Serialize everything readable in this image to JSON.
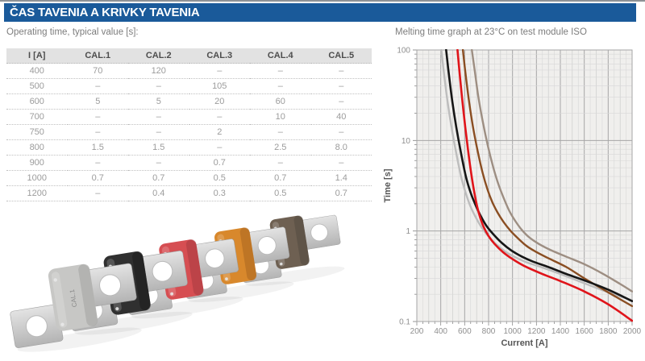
{
  "page": {
    "title": "ČAS TAVENIA A KRIVKY TAVENIA",
    "left_caption": "Operating time, typical value [s]:",
    "colors": {
      "header_bg": "#1a5a9a",
      "header_text": "#ffffff"
    }
  },
  "table": {
    "headers": [
      "I [A]",
      "CAL.1",
      "CAL.2",
      "CAL.3",
      "CAL.4",
      "CAL.5"
    ],
    "rows": [
      [
        "400",
        "70",
        "120",
        "–",
        "–",
        "–"
      ],
      [
        "500",
        "–",
        "–",
        "105",
        "–",
        "–"
      ],
      [
        "600",
        "5",
        "5",
        "20",
        "60",
        "–"
      ],
      [
        "700",
        "–",
        "–",
        "–",
        "10",
        "40"
      ],
      [
        "750",
        "–",
        "–",
        "2",
        "–",
        "–"
      ],
      [
        "800",
        "1.5",
        "1.5",
        "–",
        "2.5",
        "8.0"
      ],
      [
        "900",
        "–",
        "–",
        "0.7",
        "–",
        "–"
      ],
      [
        "1000",
        "0.7",
        "0.7",
        "0.5",
        "0.7",
        "1.4"
      ],
      [
        "1200",
        "–",
        "0.4",
        "0.3",
        "0.5",
        "0.7"
      ]
    ]
  },
  "product_image": {
    "description": "five-megafuse-row",
    "tab_color_light": "#e3e3e3",
    "tab_color_dark": "#b4b4b4",
    "fuses": [
      {
        "name": "CAL.5",
        "body_color": "#6e6052",
        "shade": "#544a3f",
        "label": ""
      },
      {
        "name": "CAL.4",
        "body_color": "#d8882c",
        "shade": "#a96620",
        "label": ""
      },
      {
        "name": "CAL.3",
        "body_color": "#d64e52",
        "shade": "#a83a3f",
        "label": ""
      },
      {
        "name": "CAL.2",
        "body_color": "#303030",
        "shade": "#1b1b1b",
        "label": ""
      },
      {
        "name": "CAL.1",
        "body_color": "#c7c7c5",
        "shade": "#a3a3a1",
        "label": "CAL.1"
      }
    ]
  },
  "chart_data": {
    "type": "line",
    "title": "Melting time graph at 23°C on test module ISO",
    "xlabel": "Current [A]",
    "ylabel": "Time [s]",
    "xlim": [
      200,
      2000
    ],
    "x_ticks": [
      200,
      400,
      600,
      800,
      1000,
      1200,
      1400,
      1600,
      1800,
      2000
    ],
    "x_minor_step": 50,
    "ylim": [
      0.1,
      100
    ],
    "y_scale": "log",
    "y_ticks": [
      "0.1",
      "1",
      "10",
      "100"
    ],
    "grid": true,
    "legend_position": "none",
    "plot_bg": "#f0efed",
    "grid_minor_color": "#d8d8d8",
    "grid_mid_color": "#c6c6c6",
    "grid_major_color": "#a6a6a6",
    "series": [
      {
        "name": "CAL.1",
        "color": "#bdbdbd",
        "width": 2.4,
        "points": [
          [
            405,
            100
          ],
          [
            425,
            58
          ],
          [
            455,
            28
          ],
          [
            490,
            14
          ],
          [
            530,
            7.2
          ],
          [
            570,
            4.0
          ],
          [
            610,
            2.6
          ],
          [
            650,
            1.85
          ],
          [
            695,
            1.4
          ],
          [
            745,
            1.08
          ],
          [
            800,
            0.87
          ],
          [
            870,
            0.7
          ],
          [
            950,
            0.58
          ],
          [
            1040,
            0.5
          ],
          [
            1120,
            0.45
          ],
          [
            1250,
            0.395
          ],
          [
            1400,
            0.335
          ],
          [
            1600,
            0.265
          ],
          [
            1800,
            0.21
          ],
          [
            2000,
            0.172
          ]
        ]
      },
      {
        "name": "CAL.5",
        "color": "#9d8e82",
        "width": 2.4,
        "points": [
          [
            660,
            100
          ],
          [
            685,
            58
          ],
          [
            715,
            30
          ],
          [
            752,
            16
          ],
          [
            795,
            8.6
          ],
          [
            840,
            5.0
          ],
          [
            885,
            3.2
          ],
          [
            930,
            2.25
          ],
          [
            975,
            1.65
          ],
          [
            1025,
            1.28
          ],
          [
            1080,
            1.02
          ],
          [
            1140,
            0.85
          ],
          [
            1220,
            0.72
          ],
          [
            1320,
            0.615
          ],
          [
            1450,
            0.52
          ],
          [
            1600,
            0.43
          ],
          [
            1750,
            0.34
          ],
          [
            1900,
            0.26
          ],
          [
            2000,
            0.215
          ]
        ]
      },
      {
        "name": "CAL.4",
        "color": "#8a4e22",
        "width": 2.4,
        "points": [
          [
            585,
            100
          ],
          [
            605,
            58
          ],
          [
            635,
            28
          ],
          [
            670,
            14
          ],
          [
            710,
            7.5
          ],
          [
            750,
            4.4
          ],
          [
            790,
            2.9
          ],
          [
            830,
            2.1
          ],
          [
            875,
            1.6
          ],
          [
            925,
            1.26
          ],
          [
            985,
            1.0
          ],
          [
            1050,
            0.82
          ],
          [
            1120,
            0.68
          ],
          [
            1200,
            0.585
          ],
          [
            1300,
            0.5
          ],
          [
            1450,
            0.4
          ],
          [
            1600,
            0.3
          ],
          [
            1800,
            0.21
          ],
          [
            2000,
            0.148
          ]
        ]
      },
      {
        "name": "CAL.2",
        "color": "#161616",
        "width": 2.6,
        "points": [
          [
            445,
            100
          ],
          [
            465,
            58
          ],
          [
            495,
            28
          ],
          [
            530,
            14
          ],
          [
            570,
            7.2
          ],
          [
            610,
            4.0
          ],
          [
            650,
            2.65
          ],
          [
            690,
            1.95
          ],
          [
            730,
            1.5
          ],
          [
            780,
            1.15
          ],
          [
            840,
            0.92
          ],
          [
            910,
            0.74
          ],
          [
            990,
            0.61
          ],
          [
            1080,
            0.52
          ],
          [
            1170,
            0.46
          ],
          [
            1300,
            0.4
          ],
          [
            1450,
            0.335
          ],
          [
            1600,
            0.285
          ],
          [
            1800,
            0.225
          ],
          [
            2000,
            0.168
          ]
        ]
      },
      {
        "name": "CAL.3",
        "color": "#e0141a",
        "width": 2.6,
        "points": [
          [
            540,
            100
          ],
          [
            558,
            55
          ],
          [
            580,
            28
          ],
          [
            605,
            14
          ],
          [
            630,
            7.5
          ],
          [
            655,
            4.3
          ],
          [
            680,
            2.7
          ],
          [
            705,
            1.85
          ],
          [
            730,
            1.4
          ],
          [
            760,
            1.1
          ],
          [
            800,
            0.88
          ],
          [
            850,
            0.72
          ],
          [
            920,
            0.585
          ],
          [
            1000,
            0.49
          ],
          [
            1100,
            0.41
          ],
          [
            1250,
            0.335
          ],
          [
            1400,
            0.28
          ],
          [
            1600,
            0.215
          ],
          [
            1800,
            0.155
          ],
          [
            2000,
            0.102
          ]
        ]
      }
    ]
  }
}
